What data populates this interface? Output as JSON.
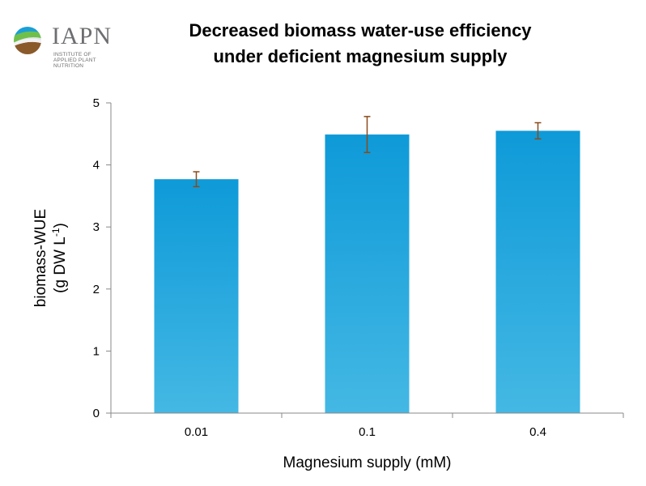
{
  "logo": {
    "name": "IAPN",
    "subtitle_line1": "INSTITUTE OF",
    "subtitle_line2": "APPLIED PLANT NUTRITION"
  },
  "chart_data": {
    "type": "bar",
    "title_line1": "Decreased biomass water-use efficiency",
    "title_line2": "under deficient magnesium supply",
    "xlabel": "Magnesium supply (mM)",
    "ylabel_line1": "biomass-WUE",
    "ylabel_line2_pre": "(g DW L",
    "ylabel_line2_sup": "-1",
    "ylabel_line2_post": ")",
    "categories": [
      "0.01",
      "0.1",
      "0.4"
    ],
    "values": [
      3.77,
      4.49,
      4.55
    ],
    "errors": [
      0.12,
      0.29,
      0.13
    ],
    "ylim": [
      0,
      5
    ],
    "yticks": [
      "0",
      "1",
      "2",
      "3",
      "4",
      "5"
    ],
    "bar_color_top": "#0e9ad8",
    "bar_color_bottom": "#44b8e4",
    "error_color": "#8b4a1a",
    "grid": false,
    "legend": "none"
  }
}
